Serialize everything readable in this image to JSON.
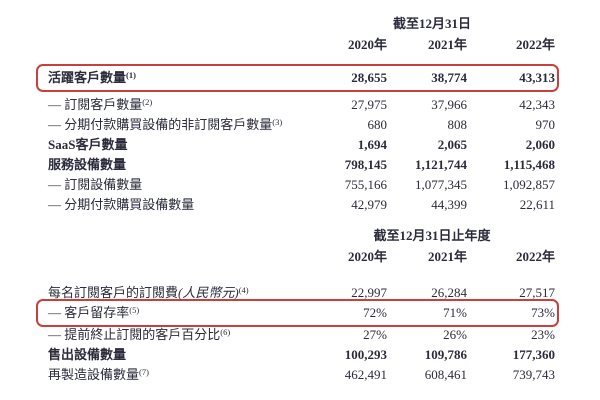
{
  "page": {
    "text_color": "#2b2b3d",
    "highlight_color": "#c9403a",
    "background": "#ffffff"
  },
  "section1": {
    "caption": "截至12月31日",
    "years": [
      "2020年",
      "2021年",
      "2022年"
    ],
    "rows": [
      {
        "label": "活躍客戶數量",
        "sup": "(1)",
        "bold": true,
        "highlight": true,
        "values": [
          "28,655",
          "38,774",
          "43,313"
        ]
      },
      {
        "label": "— 訂閱客戶數量",
        "sup": "(2)",
        "values": [
          "27,975",
          "37,966",
          "42,343"
        ]
      },
      {
        "label": "— 分期付款購買設備的非訂閱客戶數量",
        "sup": "(3)",
        "values": [
          "680",
          "808",
          "970"
        ]
      },
      {
        "label": "SaaS客戶數量",
        "bold": true,
        "values": [
          "1,694",
          "2,065",
          "2,060"
        ]
      },
      {
        "label": "服務設備數量",
        "bold": true,
        "values": [
          "798,145",
          "1,121,744",
          "1,115,468"
        ]
      },
      {
        "label": "— 訂閱設備數量",
        "values": [
          "755,166",
          "1,077,345",
          "1,092,857"
        ]
      },
      {
        "label": "— 分期付款購買設備數量",
        "values": [
          "42,979",
          "44,399",
          "22,611"
        ]
      }
    ]
  },
  "section2": {
    "caption": "截至12月31日止年度",
    "years": [
      "2020年",
      "2021年",
      "2022年"
    ],
    "rows": [
      {
        "label": "每名訂閱客戶的訂閱費",
        "italic": "(人民幣元)",
        "sup": "(4)",
        "values": [
          "22,997",
          "26,284",
          "27,517"
        ]
      },
      {
        "label": "— 客戶留存率",
        "sup": "(5)",
        "highlight": true,
        "values": [
          "72%",
          "71%",
          "73%"
        ]
      },
      {
        "label": "— 提前終止訂閱的客戶百分比",
        "sup": "(6)",
        "values": [
          "27%",
          "26%",
          "23%"
        ]
      },
      {
        "label": "售出設備數量",
        "bold": true,
        "values": [
          "100,293",
          "109,786",
          "177,360"
        ]
      },
      {
        "label": "再製造設備數量",
        "sup": "(7)",
        "values": [
          "462,491",
          "608,461",
          "739,743"
        ]
      }
    ]
  }
}
